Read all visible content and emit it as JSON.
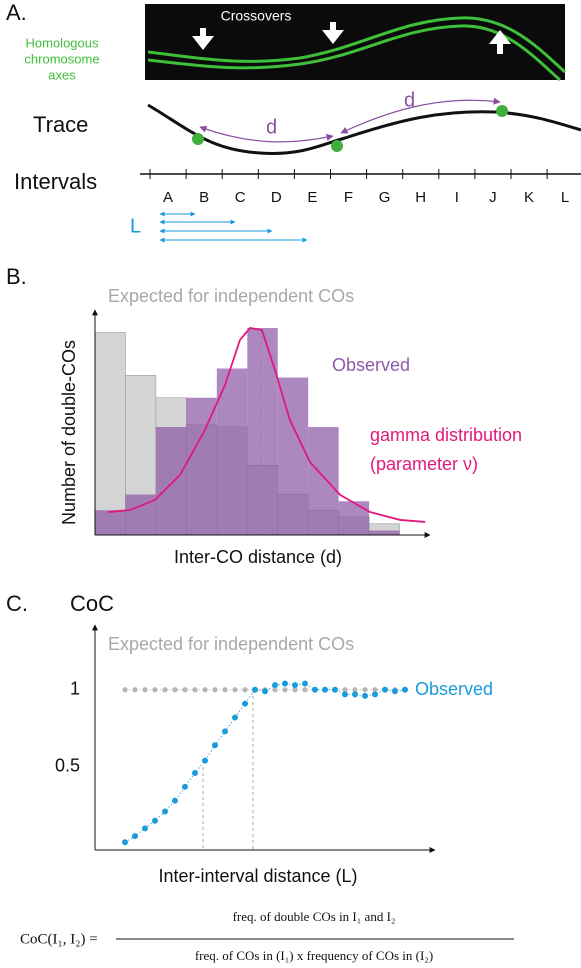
{
  "panel_a": {
    "label": "A.",
    "crossovers": "Crossovers",
    "axes_label": [
      "Homologous",
      "chromosome",
      "axes"
    ],
    "trace": "Trace",
    "d_labels": [
      "d",
      "d"
    ],
    "intervals": "Intervals",
    "interval_names": [
      "A",
      "B",
      "C",
      "D",
      "E",
      "F",
      "G",
      "H",
      "I",
      "J",
      "K",
      "L"
    ],
    "L_label": "L"
  },
  "chart_data": [
    {
      "type": "histogram",
      "title": "B.",
      "ylabel": "Number of double-COs",
      "xlabel": "Inter-CO distance (d)",
      "bins": [
        0,
        1,
        2,
        3,
        4,
        5,
        6,
        7,
        8,
        9,
        10
      ],
      "xlim": [
        0,
        11
      ],
      "ylim": [
        0,
        100
      ],
      "series": [
        {
          "name": "Expected for independent COs",
          "color": "#d4d4d4",
          "values": [
            90,
            71,
            61,
            49,
            48,
            31,
            18,
            11,
            8,
            5
          ]
        },
        {
          "name": "Observed",
          "color": "#8e5aa8",
          "values": [
            11,
            18,
            48,
            61,
            74,
            92,
            70,
            48,
            15,
            2
          ]
        }
      ],
      "curve": {
        "name": "gamma distribution",
        "color": "#e0197d",
        "x": [
          0.43,
          1.15,
          1.97,
          2.79,
          3.61,
          4.27,
          4.76,
          5.09,
          5.48,
          5.91,
          6.4,
          7.06,
          8.05,
          9.03,
          10.02,
          10.84
        ],
        "values": [
          10.2,
          11.1,
          15.6,
          26.7,
          46.7,
          66.7,
          86.7,
          92,
          91.1,
          73.3,
          51.1,
          32.4,
          17.8,
          10.2,
          6.7,
          5.8
        ]
      },
      "curve_note": "(parameter ν)"
    },
    {
      "type": "scatter",
      "title": "C.",
      "ylabel": "CoC",
      "xlabel": "Inter-interval distance (L)",
      "x": [
        0,
        1,
        2,
        3,
        4,
        5,
        6,
        7,
        8,
        9,
        10,
        11,
        12,
        13,
        14,
        15,
        16,
        17,
        18,
        19,
        20,
        21,
        22,
        23,
        24,
        25,
        26,
        27,
        28
      ],
      "xlim": [
        -3,
        31
      ],
      "ylim": [
        -0.04,
        1.42
      ],
      "yticks": [
        0.5,
        1
      ],
      "series": [
        {
          "name": "Expected for independent COs",
          "color": "#b5b5b5",
          "values": [
            1,
            1,
            1,
            1,
            1,
            1,
            1,
            1,
            1,
            1,
            1,
            1,
            1,
            1,
            1,
            1,
            1,
            1,
            1,
            1,
            1,
            1,
            1,
            1,
            1,
            1,
            1,
            1,
            1
          ]
        },
        {
          "name": "Observed",
          "color": "#1a9bdc",
          "values": [
            0.01,
            0.05,
            0.1,
            0.15,
            0.21,
            0.28,
            0.37,
            0.46,
            0.54,
            0.64,
            0.73,
            0.82,
            0.91,
            1.0,
            0.99,
            1.03,
            1.04,
            1.03,
            1.04,
            1.0,
            1.0,
            1.0,
            0.97,
            0.97,
            0.96,
            0.97,
            1.0,
            0.99,
            1.0
          ]
        }
      ]
    }
  ],
  "formula": {
    "lhs": "CoC(I₁, I₂) =",
    "numerator": "freq. of double COs in I₁ and I₂",
    "denominator": "freq. of COs in (I₁) x frequency of COs in (I₂)"
  }
}
